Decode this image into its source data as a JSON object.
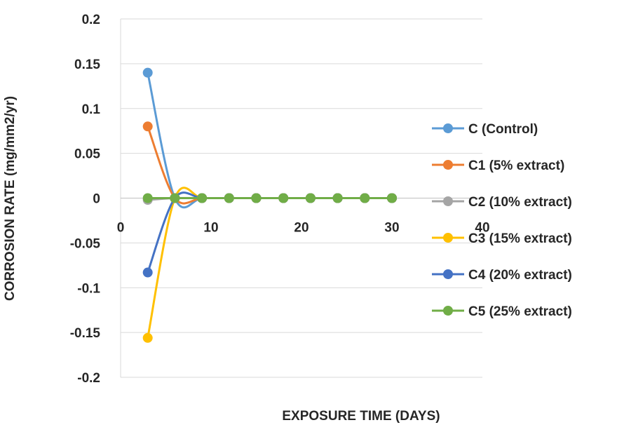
{
  "chart_data": {
    "type": "line",
    "title": "",
    "xlabel": "EXPOSURE TIME (DAYS)",
    "ylabel": "CORROSION RATE (mg/mm2/yr)",
    "xlim": [
      0,
      40
    ],
    "ylim": [
      -0.2,
      0.2
    ],
    "x_ticks": [
      "0",
      "10",
      "20",
      "30",
      "40"
    ],
    "y_ticks": [
      "0.2",
      "0.15",
      "0.1",
      "0.05",
      "0",
      "-0.05",
      "-0.1",
      "-0.15",
      "-0.2"
    ],
    "grid": "horizontal",
    "smooth": true,
    "legend_position": "right",
    "x": [
      3,
      6,
      9,
      12,
      15,
      18,
      21,
      24,
      27,
      30
    ],
    "series": [
      {
        "name": "C (Control)",
        "color": "#5b9bd5",
        "values": [
          0.14,
          0,
          0,
          0,
          0,
          0,
          0,
          0,
          0,
          0
        ]
      },
      {
        "name": "C1 (5% extract)",
        "color": "#ed7d31",
        "values": [
          0.08,
          0,
          0,
          0,
          0,
          0,
          0,
          0,
          0,
          0
        ]
      },
      {
        "name": "C2 (10% extract)",
        "color": "#a5a5a5",
        "values": [
          -0.002,
          0,
          0,
          0,
          0,
          0,
          0,
          0,
          0,
          0
        ]
      },
      {
        "name": "C3 (15% extract)",
        "color": "#ffc000",
        "values": [
          -0.156,
          0,
          0,
          0,
          0,
          0,
          0,
          0,
          0,
          0
        ]
      },
      {
        "name": "C4 (20% extract)",
        "color": "#4472c4",
        "values": [
          -0.083,
          0,
          0,
          0,
          0,
          0,
          0,
          0,
          0,
          0
        ]
      },
      {
        "name": "C5 (25% extract)",
        "color": "#70ad47",
        "values": [
          0,
          0,
          0,
          0,
          0,
          0,
          0,
          0,
          0,
          0
        ]
      }
    ]
  }
}
